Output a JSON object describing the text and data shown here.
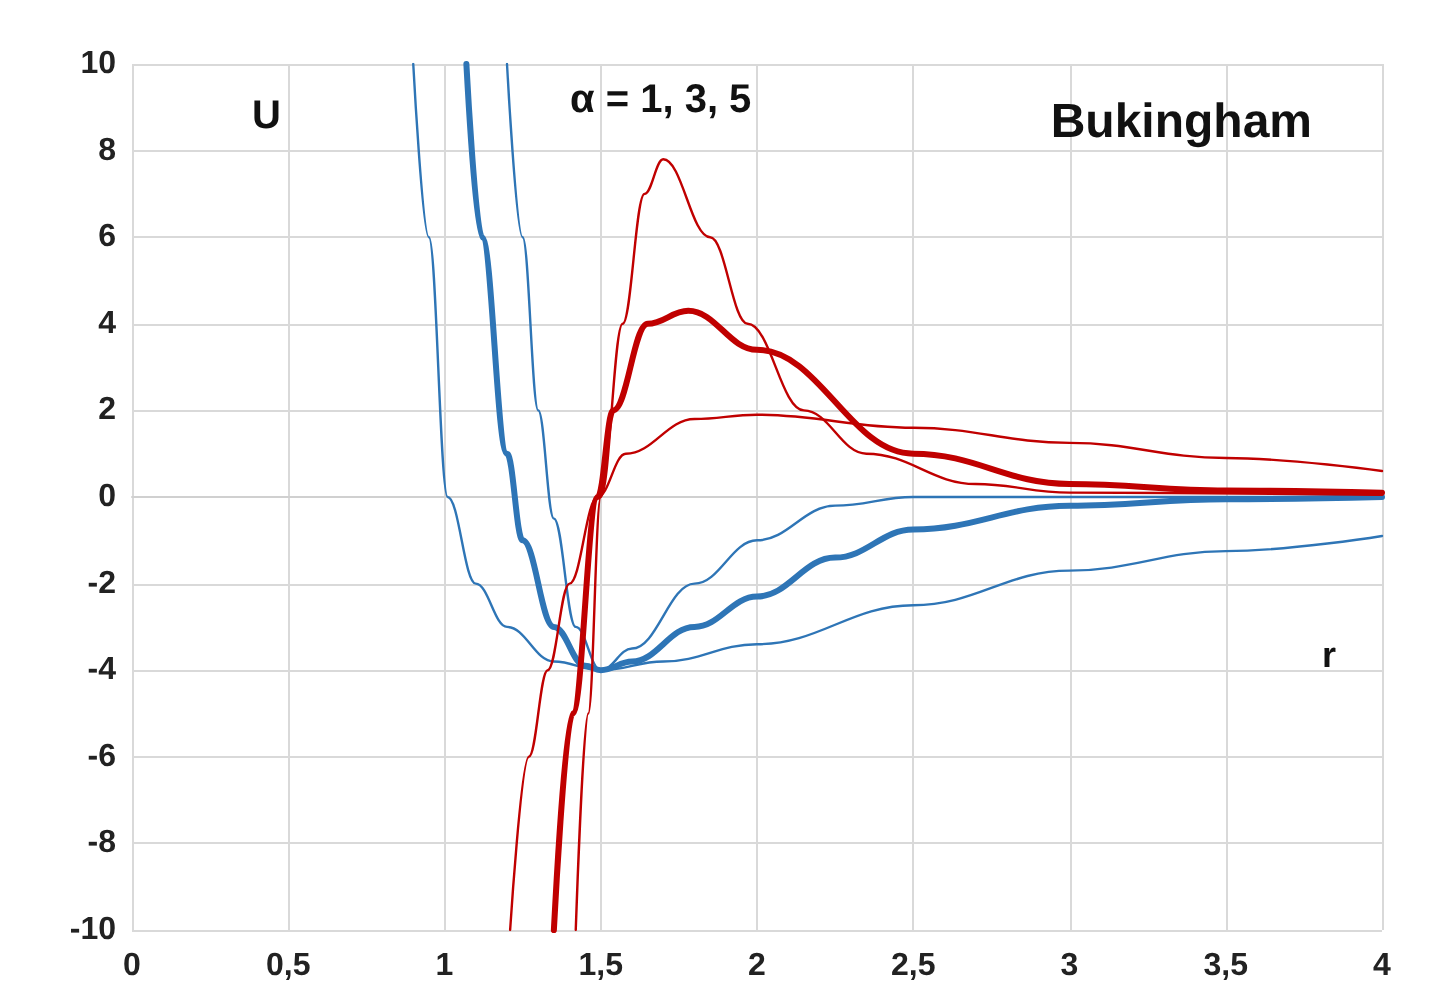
{
  "chart_data": {
    "type": "line",
    "title": "Bukingham",
    "xlabel": "r",
    "ylabel": "U",
    "annotations": [
      "α = 1, 3, 5"
    ],
    "xlim": [
      0,
      4
    ],
    "ylim": [
      -10,
      10
    ],
    "xticks": [
      0,
      {
        "value": 0.5,
        "label": "0,5"
      },
      1,
      {
        "value": 1.5,
        "label": "1,5"
      },
      2,
      {
        "value": 2.5,
        "label": "2,5"
      },
      3,
      {
        "value": 3.5,
        "label": "3,5"
      },
      4
    ],
    "yticks": [
      -10,
      -8,
      -6,
      -4,
      -2,
      0,
      2,
      4,
      6,
      8,
      10
    ],
    "grid": true,
    "marker": "none",
    "line_style": "solid",
    "series": [
      {
        "color": "#2e75b6",
        "x": [
          0.9,
          0.95,
          1.01,
          1.1,
          1.2,
          1.35,
          1.5,
          1.7,
          2.0,
          2.5,
          3.0,
          3.5,
          4.0
        ],
        "values": [
          10,
          6,
          0,
          -2,
          -3,
          -3.8,
          -4,
          -3.8,
          -3.4,
          -2.5,
          -1.7,
          -1.25,
          -0.9
        ]
      },
      {
        "color": "#2e75b6",
        "x": [
          1.07,
          1.12,
          1.2,
          1.25,
          1.35,
          1.45,
          1.5,
          1.6,
          1.8,
          2.0,
          2.25,
          2.5,
          3.0,
          3.5,
          4.0
        ],
        "values": [
          10,
          6,
          1,
          -1,
          -3,
          -3.9,
          -4,
          -3.8,
          -3,
          -2.3,
          -1.4,
          -0.75,
          -0.2,
          -0.05,
          0
        ]
      },
      {
        "color": "#2e75b6",
        "x": [
          1.2,
          1.25,
          1.3,
          1.35,
          1.42,
          1.5,
          1.6,
          1.8,
          2.0,
          2.25,
          2.5,
          3.0,
          4.0
        ],
        "values": [
          10,
          6,
          2,
          -0.5,
          -3,
          -4,
          -3.5,
          -2,
          -1,
          -0.2,
          0,
          0,
          0
        ]
      },
      {
        "color": "#c00000",
        "x": [
          1.21,
          1.27,
          1.33,
          1.4,
          1.49,
          1.58,
          1.8,
          2.0,
          2.5,
          3.0,
          3.5,
          4.0
        ],
        "values": [
          -10,
          -6,
          -4,
          -2,
          0,
          1,
          1.8,
          1.9,
          1.6,
          1.25,
          0.9,
          0.6
        ]
      },
      {
        "color": "#c00000",
        "x": [
          1.35,
          1.41,
          1.49,
          1.54,
          1.65,
          1.78,
          2.0,
          2.5,
          3.0,
          3.5,
          4.0
        ],
        "values": [
          -10,
          -5,
          0,
          2,
          4,
          4.3,
          3.4,
          1,
          0.3,
          0.15,
          0.1
        ]
      },
      {
        "color": "#c00000",
        "x": [
          1.42,
          1.46,
          1.5,
          1.57,
          1.64,
          1.7,
          1.85,
          1.97,
          2.15,
          2.35,
          2.7,
          3.0,
          4.0
        ],
        "values": [
          -10,
          -5,
          0,
          4,
          7,
          7.8,
          6,
          4,
          2,
          1,
          0.3,
          0.1,
          0.05
        ]
      }
    ]
  }
}
